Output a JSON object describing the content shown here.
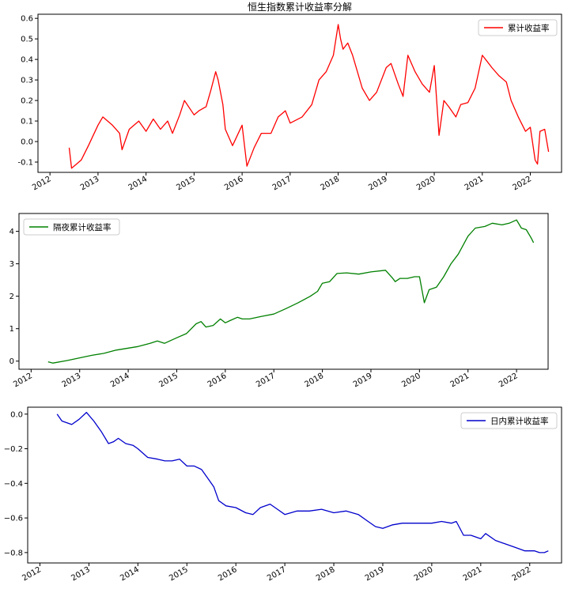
{
  "chart_data": [
    {
      "type": "line",
      "title": "恒生指数累计收益率分解",
      "legend_position": "top-right",
      "xlim": [
        2011.75,
        2022.65
      ],
      "ylim": [
        -0.15,
        0.62
      ],
      "xticks": [
        2012,
        2013,
        2014,
        2015,
        2016,
        2017,
        2018,
        2019,
        2020,
        2021,
        2022
      ],
      "xtick_labels": [
        "2012",
        "2013",
        "2014",
        "2015",
        "2016",
        "2017",
        "2018",
        "2019",
        "2020",
        "2021",
        "2022"
      ],
      "yticks": [
        -0.1,
        0.0,
        0.1,
        0.2,
        0.3,
        0.4,
        0.5,
        0.6
      ],
      "ytick_labels": [
        "-0.1",
        "0.0",
        "0.1",
        "0.2",
        "0.3",
        "0.4",
        "0.5",
        "0.6"
      ],
      "series": [
        {
          "name": "累计收益率",
          "color": "#ff0000",
          "x": [
            2012.4,
            2012.45,
            2012.55,
            2012.65,
            2012.8,
            2013.0,
            2013.1,
            2013.3,
            2013.45,
            2013.5,
            2013.65,
            2013.85,
            2014.0,
            2014.15,
            2014.3,
            2014.45,
            2014.55,
            2014.7,
            2014.8,
            2015.0,
            2015.1,
            2015.25,
            2015.35,
            2015.45,
            2015.5,
            2015.6,
            2015.65,
            2015.8,
            2016.0,
            2016.1,
            2016.25,
            2016.4,
            2016.6,
            2016.75,
            2016.9,
            2017.0,
            2017.25,
            2017.45,
            2017.6,
            2017.75,
            2017.9,
            2018.0,
            2018.05,
            2018.1,
            2018.2,
            2018.3,
            2018.5,
            2018.65,
            2018.8,
            2019.0,
            2019.1,
            2019.25,
            2019.35,
            2019.45,
            2019.6,
            2019.75,
            2019.9,
            2020.0,
            2020.1,
            2020.2,
            2020.3,
            2020.45,
            2020.55,
            2020.7,
            2020.85,
            2021.0,
            2021.1,
            2021.2,
            2021.35,
            2021.5,
            2021.6,
            2021.75,
            2021.9,
            2022.0,
            2022.1,
            2022.15,
            2022.2,
            2022.3,
            2022.38
          ],
          "y": [
            -0.03,
            -0.13,
            -0.11,
            -0.09,
            -0.02,
            0.08,
            0.12,
            0.08,
            0.04,
            -0.04,
            0.06,
            0.1,
            0.05,
            0.11,
            0.06,
            0.1,
            0.04,
            0.13,
            0.2,
            0.13,
            0.15,
            0.17,
            0.25,
            0.34,
            0.3,
            0.18,
            0.06,
            -0.02,
            0.08,
            -0.12,
            -0.03,
            0.04,
            0.04,
            0.12,
            0.15,
            0.09,
            0.12,
            0.18,
            0.3,
            0.34,
            0.42,
            0.57,
            0.5,
            0.45,
            0.48,
            0.42,
            0.26,
            0.2,
            0.24,
            0.36,
            0.38,
            0.28,
            0.22,
            0.42,
            0.34,
            0.28,
            0.24,
            0.37,
            0.03,
            0.2,
            0.17,
            0.12,
            0.18,
            0.19,
            0.26,
            0.42,
            0.39,
            0.36,
            0.32,
            0.29,
            0.2,
            0.12,
            0.05,
            0.07,
            -0.09,
            -0.11,
            0.05,
            0.06,
            -0.05
          ]
        }
      ]
    },
    {
      "type": "line",
      "title": "",
      "legend_position": "top-left",
      "xlim": [
        2011.75,
        2022.65
      ],
      "ylim": [
        -0.25,
        4.55
      ],
      "xticks": [
        2012,
        2013,
        2014,
        2015,
        2016,
        2017,
        2018,
        2019,
        2020,
        2021,
        2022
      ],
      "xtick_labels": [
        "2012",
        "2013",
        "2014",
        "2015",
        "2016",
        "2017",
        "2018",
        "2019",
        "2020",
        "2021",
        "2022"
      ],
      "yticks": [
        0,
        1,
        2,
        3,
        4
      ],
      "ytick_labels": [
        "0",
        "1",
        "2",
        "3",
        "4"
      ],
      "series": [
        {
          "name": "隔夜累计收益率",
          "color": "#008000",
          "x": [
            2012.35,
            2012.45,
            2012.75,
            2013.0,
            2013.25,
            2013.5,
            2013.75,
            2014.0,
            2014.2,
            2014.45,
            2014.6,
            2014.75,
            2015.0,
            2015.2,
            2015.4,
            2015.5,
            2015.6,
            2015.75,
            2015.9,
            2016.0,
            2016.1,
            2016.25,
            2016.35,
            2016.5,
            2016.75,
            2017.0,
            2017.25,
            2017.5,
            2017.75,
            2017.9,
            2018.0,
            2018.15,
            2018.3,
            2018.5,
            2018.75,
            2019.0,
            2019.3,
            2019.45,
            2019.5,
            2019.6,
            2019.75,
            2019.9,
            2020.0,
            2020.1,
            2020.2,
            2020.35,
            2020.5,
            2020.65,
            2020.8,
            2021.0,
            2021.15,
            2021.35,
            2021.5,
            2021.7,
            2021.85,
            2022.0,
            2022.1,
            2022.2,
            2022.3,
            2022.35
          ],
          "y": [
            -0.02,
            -0.06,
            0.02,
            0.1,
            0.18,
            0.24,
            0.34,
            0.4,
            0.45,
            0.55,
            0.62,
            0.55,
            0.72,
            0.85,
            1.15,
            1.22,
            1.05,
            1.1,
            1.3,
            1.18,
            1.25,
            1.35,
            1.3,
            1.3,
            1.38,
            1.45,
            1.62,
            1.8,
            2.0,
            2.15,
            2.4,
            2.45,
            2.7,
            2.72,
            2.68,
            2.75,
            2.8,
            2.55,
            2.45,
            2.55,
            2.55,
            2.6,
            2.6,
            1.8,
            2.2,
            2.28,
            2.6,
            3.0,
            3.3,
            3.85,
            4.1,
            4.15,
            4.25,
            4.2,
            4.25,
            4.35,
            4.1,
            4.05,
            3.8,
            3.65
          ]
        }
      ]
    },
    {
      "type": "line",
      "title": "",
      "legend_position": "top-right",
      "xlim": [
        2011.75,
        2022.65
      ],
      "ylim": [
        -0.86,
        0.04
      ],
      "xticks": [
        2012,
        2013,
        2014,
        2015,
        2016,
        2017,
        2018,
        2019,
        2020,
        2021,
        2022
      ],
      "xtick_labels": [
        "2012",
        "2013",
        "2014",
        "2015",
        "2016",
        "2017",
        "2018",
        "2019",
        "2020",
        "2021",
        "2022"
      ],
      "yticks": [
        0.0,
        -0.2,
        -0.4,
        -0.6,
        -0.8
      ],
      "ytick_labels": [
        "0.0",
        "−0.2",
        "−0.4",
        "−0.6",
        "−0.8"
      ],
      "series": [
        {
          "name": "日内累计收益率",
          "color": "#0000cc",
          "x": [
            2012.35,
            2012.45,
            2012.65,
            2012.8,
            2012.95,
            2013.1,
            2013.25,
            2013.4,
            2013.5,
            2013.6,
            2013.75,
            2013.9,
            2014.0,
            2014.2,
            2014.4,
            2014.55,
            2014.7,
            2014.85,
            2015.0,
            2015.15,
            2015.3,
            2015.45,
            2015.55,
            2015.65,
            2015.8,
            2016.0,
            2016.2,
            2016.35,
            2016.5,
            2016.7,
            2016.85,
            2017.0,
            2017.25,
            2017.5,
            2017.75,
            2018.0,
            2018.25,
            2018.5,
            2018.7,
            2018.85,
            2019.0,
            2019.2,
            2019.4,
            2019.6,
            2019.8,
            2020.0,
            2020.2,
            2020.4,
            2020.5,
            2020.65,
            2020.8,
            2021.0,
            2021.1,
            2021.3,
            2021.5,
            2021.7,
            2021.9,
            2022.1,
            2022.2,
            2022.3,
            2022.38
          ],
          "y": [
            0.0,
            -0.04,
            -0.06,
            -0.03,
            0.01,
            -0.04,
            -0.1,
            -0.17,
            -0.16,
            -0.14,
            -0.17,
            -0.18,
            -0.2,
            -0.25,
            -0.26,
            -0.27,
            -0.27,
            -0.26,
            -0.3,
            -0.3,
            -0.32,
            -0.38,
            -0.42,
            -0.5,
            -0.53,
            -0.54,
            -0.57,
            -0.58,
            -0.54,
            -0.52,
            -0.55,
            -0.58,
            -0.56,
            -0.56,
            -0.55,
            -0.57,
            -0.56,
            -0.58,
            -0.62,
            -0.65,
            -0.66,
            -0.64,
            -0.63,
            -0.63,
            -0.63,
            -0.63,
            -0.62,
            -0.63,
            -0.62,
            -0.7,
            -0.7,
            -0.72,
            -0.69,
            -0.73,
            -0.75,
            -0.77,
            -0.79,
            -0.79,
            -0.8,
            -0.8,
            -0.79
          ]
        }
      ]
    }
  ]
}
